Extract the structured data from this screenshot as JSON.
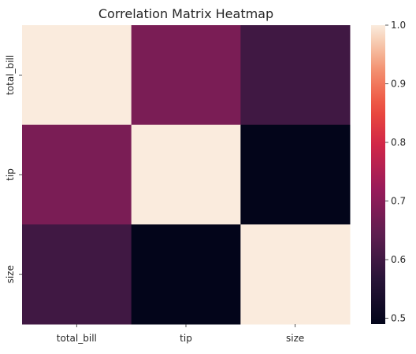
{
  "chart_data": {
    "type": "heatmap",
    "title": "Correlation Matrix Heatmap",
    "xlabel": "",
    "ylabel": "",
    "x_categories": [
      "total_bill",
      "tip",
      "size"
    ],
    "y_categories": [
      "total_bill",
      "tip",
      "size"
    ],
    "values": [
      [
        1.0,
        0.68,
        0.6
      ],
      [
        0.68,
        1.0,
        0.49
      ],
      [
        0.6,
        0.49,
        1.0
      ]
    ],
    "colorbar": {
      "colormap": "rocket",
      "range": [
        0.49,
        1.0
      ],
      "ticks": [
        0.5,
        0.6,
        0.7,
        0.8,
        0.9,
        1.0
      ],
      "tick_labels": [
        "0.5",
        "0.6",
        "0.7",
        "0.8",
        "0.9",
        "1.0"
      ],
      "placement": "right"
    },
    "annotations": false,
    "grid": false
  }
}
